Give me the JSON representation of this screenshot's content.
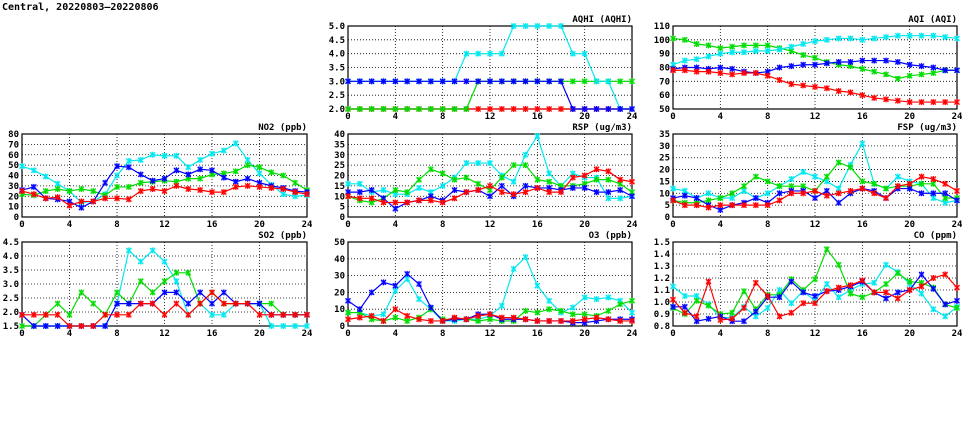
{
  "header": {
    "title": "Central, 20220803–20220806"
  },
  "series_colors": {
    "red": "#ff0000",
    "green": "#00dd00",
    "blue": "#0000ff",
    "cyan": "#00e8f0"
  },
  "chart_data": [
    {
      "type": "line",
      "title": "AQHI (AQHI)",
      "xlim": [
        0,
        24
      ],
      "xticks": [
        "0",
        "4",
        "8",
        "12",
        "16",
        "20",
        "24"
      ],
      "ylim": [
        2,
        5
      ],
      "yticks": [
        "2.0",
        "2.5",
        "3.0",
        "3.5",
        "4.0",
        "4.5",
        "5.0"
      ],
      "grid": true,
      "series": [
        {
          "name": "red",
          "values": [
            2,
            2,
            2,
            2,
            2,
            2,
            2,
            2,
            2,
            2,
            2,
            2,
            2,
            2,
            2,
            2,
            2,
            2,
            2,
            2,
            2,
            2,
            2,
            2,
            2
          ]
        },
        {
          "name": "green",
          "values": [
            2,
            2,
            2,
            2,
            2,
            2,
            2,
            2,
            2,
            2,
            2,
            3,
            3,
            3,
            3,
            3,
            3,
            3,
            3,
            3,
            3,
            3,
            3,
            3,
            3
          ]
        },
        {
          "name": "cyan",
          "values": [
            3,
            3,
            3,
            3,
            3,
            3,
            3,
            3,
            3,
            3,
            4,
            4,
            4,
            4,
            5,
            5,
            5,
            5,
            5,
            4,
            4,
            3,
            3,
            2,
            2
          ]
        },
        {
          "name": "blue",
          "values": [
            3,
            3,
            3,
            3,
            3,
            3,
            3,
            3,
            3,
            3,
            3,
            3,
            3,
            3,
            3,
            3,
            3,
            3,
            3,
            2,
            2,
            2,
            2,
            2,
            2
          ]
        }
      ]
    },
    {
      "type": "line",
      "title": "AQI (AQI)",
      "xlim": [
        0,
        24
      ],
      "xticks": [
        "0",
        "4",
        "8",
        "12",
        "16",
        "20",
        "24"
      ],
      "ylim": [
        50,
        110
      ],
      "yticks": [
        "50",
        "60",
        "70",
        "80",
        "90",
        "100",
        "110"
      ],
      "grid": true,
      "series": [
        {
          "name": "green",
          "values": [
            101,
            100,
            97,
            96,
            94,
            95,
            96,
            96,
            96,
            94,
            92,
            89,
            87,
            84,
            82,
            81,
            79,
            77,
            75,
            72,
            74,
            75,
            76,
            78,
            78
          ]
        },
        {
          "name": "cyan",
          "values": [
            82,
            85,
            86,
            88,
            90,
            91,
            91,
            92,
            92,
            93,
            95,
            97,
            99,
            100,
            101,
            101,
            100,
            101,
            102,
            103,
            103,
            103,
            103,
            102,
            101
          ]
        },
        {
          "name": "blue",
          "values": [
            79,
            80,
            80,
            79,
            80,
            79,
            77,
            76,
            77,
            80,
            81,
            82,
            82,
            83,
            84,
            84,
            85,
            85,
            85,
            84,
            82,
            81,
            80,
            78,
            78
          ]
        },
        {
          "name": "red",
          "values": [
            78,
            78,
            77,
            77,
            76,
            75,
            76,
            76,
            74,
            71,
            68,
            67,
            66,
            65,
            63,
            62,
            60,
            58,
            57,
            56,
            55,
            55,
            55,
            55,
            55
          ]
        }
      ]
    },
    {
      "type": "line",
      "title": "NO2 (ppb)",
      "xlim": [
        0,
        24
      ],
      "xticks": [
        "0",
        "4",
        "8",
        "12",
        "16",
        "20",
        "24"
      ],
      "ylim": [
        0,
        80
      ],
      "yticks": [
        "0",
        "10",
        "20",
        "30",
        "40",
        "50",
        "60",
        "70",
        "80"
      ],
      "grid": true,
      "series": [
        {
          "name": "cyan",
          "values": [
            49,
            45,
            39,
            32,
            25,
            14,
            15,
            22,
            40,
            54,
            55,
            60,
            59,
            59,
            48,
            55,
            61,
            64,
            71,
            55,
            42,
            31,
            22,
            20,
            21
          ]
        },
        {
          "name": "green",
          "values": [
            22,
            21,
            25,
            27,
            25,
            27,
            25,
            21,
            29,
            29,
            33,
            34,
            35,
            34,
            37,
            37,
            41,
            42,
            44,
            50,
            48,
            43,
            40,
            33,
            26
          ]
        },
        {
          "name": "blue",
          "values": [
            26,
            29,
            18,
            17,
            15,
            9,
            15,
            33,
            49,
            48,
            41,
            35,
            37,
            45,
            41,
            46,
            45,
            38,
            34,
            37,
            33,
            30,
            28,
            25,
            24
          ]
        },
        {
          "name": "red",
          "values": [
            25,
            22,
            18,
            19,
            11,
            15,
            15,
            18,
            18,
            17,
            25,
            27,
            25,
            30,
            27,
            26,
            24,
            24,
            29,
            30,
            29,
            28,
            27,
            24,
            22
          ]
        }
      ]
    },
    {
      "type": "line",
      "title": "RSP (ug/m3)",
      "xlim": [
        0,
        24
      ],
      "xticks": [
        "0",
        "4",
        "8",
        "12",
        "16",
        "20",
        "24"
      ],
      "ylim": [
        0,
        40
      ],
      "yticks": [
        "0",
        "5",
        "10",
        "15",
        "20",
        "25",
        "30",
        "35",
        "40"
      ],
      "grid": true,
      "series": [
        {
          "name": "cyan",
          "values": [
            16,
            16,
            12,
            13,
            11,
            11,
            14,
            12,
            15,
            19,
            26,
            26,
            26,
            20,
            17,
            30,
            39,
            21,
            15,
            21,
            19,
            19,
            9,
            9,
            10
          ]
        },
        {
          "name": "green",
          "values": [
            10,
            8,
            7,
            9,
            13,
            12,
            18,
            23,
            21,
            18,
            19,
            16,
            13,
            19,
            25,
            25,
            18,
            17,
            15,
            15,
            16,
            18,
            18,
            16,
            12
          ]
        },
        {
          "name": "blue",
          "values": [
            12,
            12,
            13,
            9,
            4,
            7,
            8,
            10,
            8,
            13,
            12,
            13,
            10,
            15,
            10,
            15,
            14,
            14,
            13,
            14,
            14,
            12,
            12,
            13,
            10
          ]
        },
        {
          "name": "red",
          "values": [
            10,
            9,
            9,
            7,
            7,
            7,
            8,
            8,
            7,
            9,
            12,
            13,
            15,
            12,
            11,
            12,
            14,
            12,
            12,
            19,
            20,
            23,
            22,
            18,
            17
          ]
        }
      ]
    },
    {
      "type": "line",
      "title": "FSP (ug/m3)",
      "xlim": [
        0,
        24
      ],
      "xticks": [
        "0",
        "4",
        "8",
        "12",
        "16",
        "20",
        "24"
      ],
      "ylim": [
        0,
        35
      ],
      "yticks": [
        "0",
        "5",
        "10",
        "15",
        "20",
        "25",
        "30",
        "35"
      ],
      "grid": true,
      "series": [
        {
          "name": "cyan",
          "values": [
            12,
            11,
            8,
            10,
            8,
            8,
            11,
            8,
            10,
            13,
            16,
            19,
            17,
            15,
            12,
            22,
            31,
            14,
            12,
            17,
            15,
            14,
            8,
            6,
            7
          ]
        },
        {
          "name": "green",
          "values": [
            7,
            6,
            6,
            7,
            8,
            10,
            13,
            17,
            15,
            13,
            13,
            13,
            11,
            17,
            23,
            21,
            15,
            14,
            12,
            13,
            13,
            14,
            14,
            8,
            8
          ]
        },
        {
          "name": "blue",
          "values": [
            8,
            9,
            8,
            5,
            3,
            5,
            6,
            8,
            6,
            10,
            11,
            11,
            8,
            11,
            6,
            10,
            12,
            11,
            8,
            12,
            12,
            10,
            10,
            10,
            7
          ]
        },
        {
          "name": "red",
          "values": [
            7,
            5,
            5,
            4,
            5,
            5,
            5,
            5,
            5,
            7,
            10,
            10,
            11,
            9,
            10,
            11,
            12,
            10,
            8,
            13,
            14,
            17,
            16,
            14,
            11
          ]
        }
      ]
    },
    {
      "type": "line",
      "title": "SO2 (ppb)",
      "xlim": [
        0,
        24
      ],
      "xticks": [
        "0",
        "4",
        "8",
        "12",
        "16",
        "20",
        "24"
      ],
      "ylim": [
        1.5,
        4.5
      ],
      "yticks": [
        "1.5",
        "2.0",
        "2.5",
        "3.0",
        "3.5",
        "4.0",
        "4.5"
      ],
      "grid": true,
      "series": [
        {
          "name": "cyan",
          "values": [
            1.9,
            1.5,
            1.5,
            1.5,
            1.5,
            1.5,
            1.5,
            1.5,
            2.3,
            4.2,
            3.8,
            4.2,
            3.8,
            3.1,
            1.9,
            2.3,
            1.9,
            1.9,
            2.3,
            2.3,
            2.3,
            1.5,
            1.5,
            1.5,
            1.5
          ]
        },
        {
          "name": "green",
          "values": [
            1.5,
            1.5,
            1.9,
            2.3,
            1.9,
            2.7,
            2.3,
            1.9,
            2.7,
            2.3,
            3.1,
            2.7,
            3.1,
            3.4,
            3.4,
            2.3,
            2.7,
            2.3,
            2.3,
            2.3,
            2.3,
            2.3,
            1.9,
            1.9,
            1.9
          ]
        },
        {
          "name": "blue",
          "values": [
            1.9,
            1.5,
            1.5,
            1.5,
            1.5,
            1.5,
            1.5,
            1.5,
            2.3,
            2.3,
            2.3,
            2.3,
            2.7,
            2.7,
            2.3,
            2.7,
            2.3,
            2.7,
            2.3,
            2.3,
            2.3,
            1.9,
            1.9,
            1.9,
            1.9
          ]
        },
        {
          "name": "red",
          "values": [
            1.9,
            1.9,
            1.9,
            1.9,
            1.5,
            1.5,
            1.5,
            1.9,
            1.9,
            1.9,
            2.3,
            2.3,
            1.9,
            2.3,
            1.9,
            2.3,
            2.7,
            2.3,
            2.3,
            2.3,
            1.9,
            1.9,
            1.9,
            1.9,
            1.9
          ]
        }
      ]
    },
    {
      "type": "line",
      "title": "O3 (ppb)",
      "xlim": [
        0,
        24
      ],
      "xticks": [
        "0",
        "4",
        "8",
        "12",
        "16",
        "20",
        "24"
      ],
      "ylim": [
        0,
        50
      ],
      "yticks": [
        "0",
        "10",
        "20",
        "30",
        "40",
        "50"
      ],
      "grid": true,
      "series": [
        {
          "name": "cyan",
          "values": [
            8,
            8,
            6,
            7,
            21,
            28,
            16,
            10,
            3,
            3,
            4,
            4,
            6,
            12,
            34,
            41,
            24,
            15,
            8,
            11,
            17,
            16,
            17,
            15,
            8
          ]
        },
        {
          "name": "green",
          "values": [
            8,
            8,
            4,
            3,
            5,
            3,
            5,
            10,
            4,
            4,
            4,
            3,
            4,
            3,
            3,
            9,
            8,
            10,
            9,
            7,
            7,
            6,
            9,
            13,
            15
          ]
        },
        {
          "name": "blue",
          "values": [
            15,
            10,
            20,
            26,
            24,
            31,
            25,
            11,
            3,
            4,
            4,
            7,
            7,
            4,
            4,
            4,
            3,
            3,
            3,
            2,
            2,
            3,
            4,
            4,
            4
          ]
        },
        {
          "name": "red",
          "values": [
            4,
            5,
            6,
            3,
            10,
            6,
            4,
            3,
            3,
            5,
            4,
            6,
            7,
            5,
            5,
            4,
            3,
            3,
            3,
            3,
            4,
            5,
            4,
            3,
            3
          ]
        }
      ]
    },
    {
      "type": "line",
      "title": "CO (ppm)",
      "xlim": [
        0,
        24
      ],
      "xticks": [
        "0",
        "4",
        "8",
        "12",
        "16",
        "20",
        "24"
      ],
      "ylim": [
        0.8,
        1.5
      ],
      "yticks": [
        "0.8",
        "0.9",
        "1.0",
        "1.1",
        "1.2",
        "1.3",
        "1.4",
        "1.5"
      ],
      "grid": true,
      "series": [
        {
          "name": "cyan",
          "values": [
            1.13,
            1.05,
            1.05,
            0.98,
            0.87,
            0.87,
            0.96,
            0.88,
            0.95,
            1.1,
            0.99,
            1.09,
            1.01,
            1.15,
            1.04,
            1.1,
            1.15,
            1.16,
            1.31,
            1.25,
            1.15,
            1.07,
            0.94,
            0.88,
            0.96
          ]
        },
        {
          "name": "green",
          "values": [
            0.95,
            0.9,
            1.01,
            0.97,
            0.9,
            0.91,
            1.09,
            0.94,
            1.06,
            1.06,
            1.19,
            1.1,
            1.19,
            1.44,
            1.31,
            1.07,
            1.04,
            1.08,
            1.15,
            1.24,
            1.17,
            1.16,
            1.12,
            0.98,
            0.95
          ]
        },
        {
          "name": "blue",
          "values": [
            0.96,
            0.96,
            0.84,
            0.86,
            0.88,
            0.84,
            0.84,
            0.92,
            1.04,
            1.04,
            1.17,
            1.08,
            1.05,
            1.09,
            1.1,
            1.13,
            1.17,
            1.08,
            1.03,
            1.08,
            1.1,
            1.23,
            1.11,
            0.98,
            1.01
          ]
        },
        {
          "name": "red",
          "values": [
            1.02,
            0.91,
            0.88,
            1.17,
            0.85,
            0.86,
            0.95,
            1.16,
            1.05,
            0.88,
            0.91,
            0.99,
            0.99,
            1.09,
            1.12,
            1.14,
            1.18,
            1.08,
            1.08,
            1.03,
            1.1,
            1.13,
            1.2,
            1.23,
            1.12
          ]
        }
      ]
    }
  ]
}
